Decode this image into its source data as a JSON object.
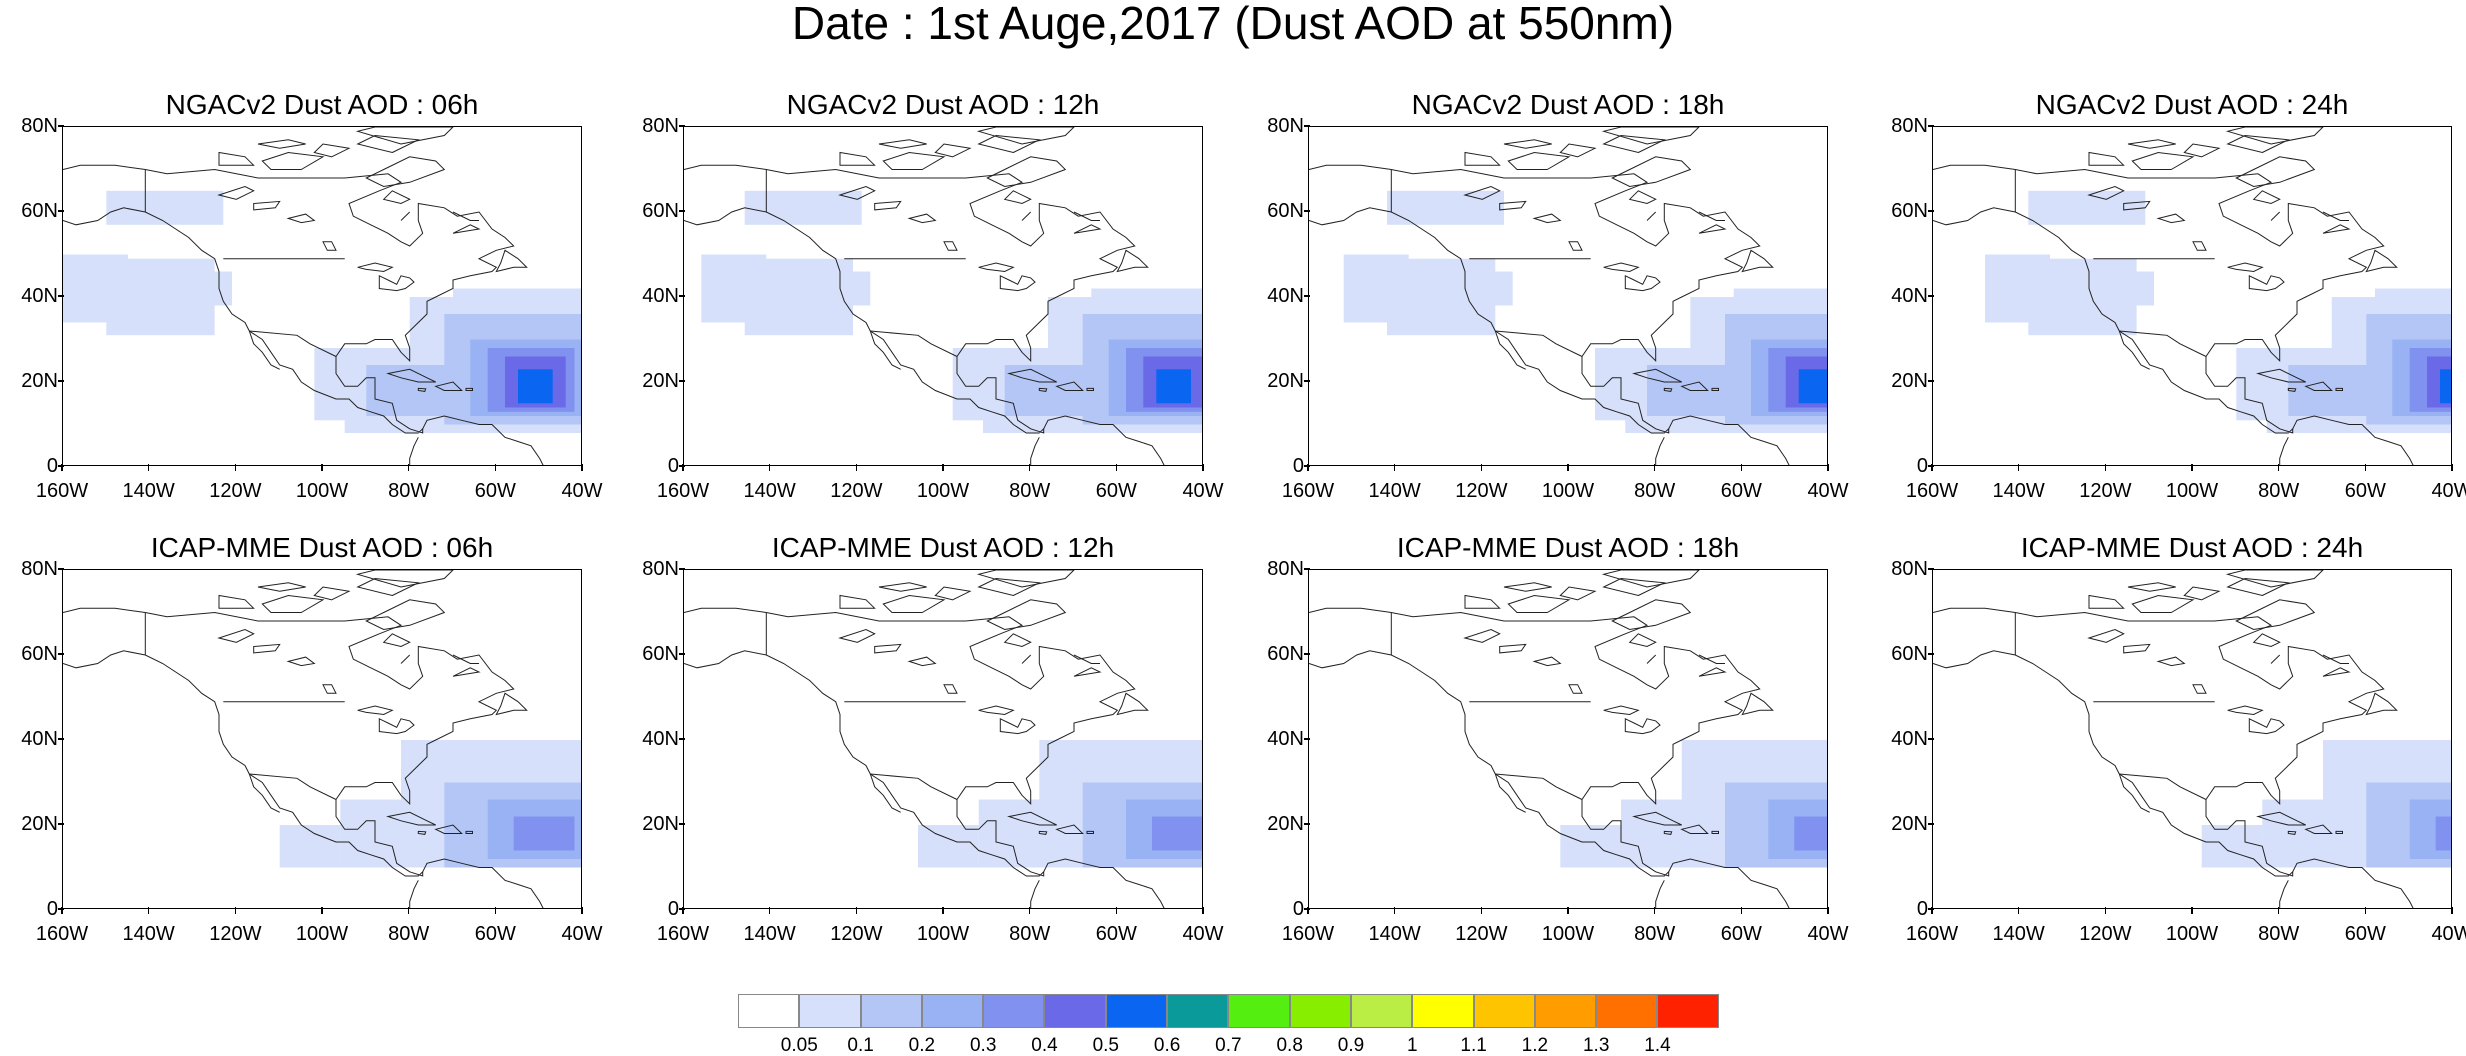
{
  "figure": {
    "title": "Date : 1st Auge,2017 (Dust AOD at 550nm)",
    "map": {
      "lat_ticks": [
        "80N",
        "60N",
        "40N",
        "20N",
        "0"
      ],
      "lat_values": [
        80,
        60,
        40,
        20,
        0
      ],
      "lon_ticks": [
        "160W",
        "140W",
        "120W",
        "100W",
        "80W",
        "60W",
        "40W"
      ],
      "lon_values": [
        -160,
        -140,
        -120,
        -100,
        -80,
        -60,
        -40
      ],
      "lon_range": [
        -160,
        -40
      ],
      "lat_range": [
        0,
        80
      ]
    },
    "panels": [
      {
        "title": "NGACv2 Dust AOD : 06h",
        "model": "NGACv2",
        "hour": 6
      },
      {
        "title": "NGACv2 Dust AOD : 12h",
        "model": "NGACv2",
        "hour": 12
      },
      {
        "title": "NGACv2 Dust AOD : 18h",
        "model": "NGACv2",
        "hour": 18
      },
      {
        "title": "NGACv2 Dust AOD : 24h",
        "model": "NGACv2",
        "hour": 24
      },
      {
        "title": "ICAP-MME Dust AOD : 06h",
        "model": "ICAP-MME",
        "hour": 6
      },
      {
        "title": "ICAP-MME Dust AOD : 12h",
        "model": "ICAP-MME",
        "hour": 12
      },
      {
        "title": "ICAP-MME Dust AOD : 18h",
        "model": "ICAP-MME",
        "hour": 18
      },
      {
        "title": "ICAP-MME Dust AOD : 24h",
        "model": "ICAP-MME",
        "hour": 24
      }
    ],
    "colorbar": {
      "labels": [
        "0.05",
        "0.1",
        "0.2",
        "0.3",
        "0.4",
        "0.5",
        "0.6",
        "0.7",
        "0.8",
        "0.9",
        "1",
        "1.1",
        "1.2",
        "1.3",
        "1.4"
      ],
      "colors": [
        "#ffffff",
        "#d6e0fb",
        "#b4c6f6",
        "#98b2f4",
        "#8091f0",
        "#6a6ae8",
        "#0a66f0",
        "#0a9a9a",
        "#55ee11",
        "#88ee00",
        "#bbee44",
        "#ffff00",
        "#ffc400",
        "#ff9c00",
        "#ff7000",
        "#ff2200"
      ]
    },
    "dust_levels": {
      "light": "#d6e0fb",
      "low": "#b4c6f6",
      "mid": "#98b2f4",
      "high": "#8091f0",
      "core": "#6a6ae8",
      "peak": "#0a66f0"
    }
  }
}
